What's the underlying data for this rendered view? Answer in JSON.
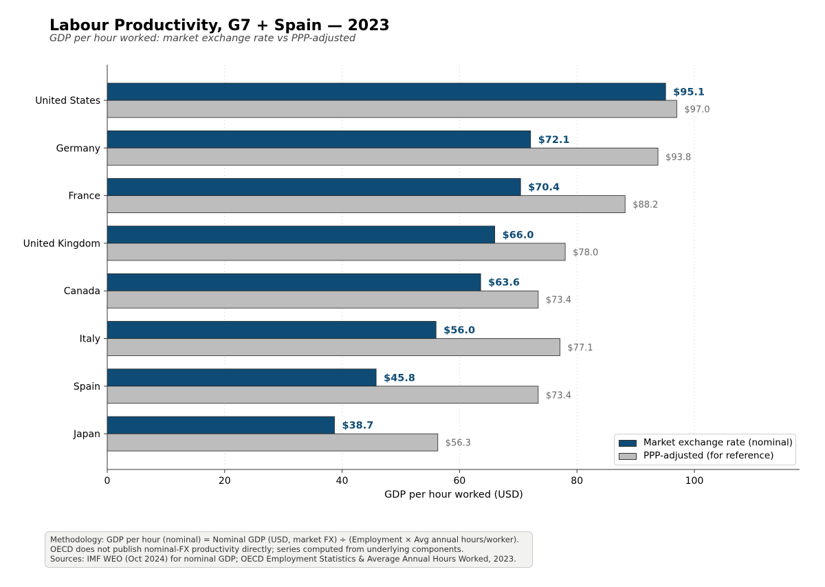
{
  "title": "Labour Productivity, G7 + Spain — 2023",
  "subtitle": "GDP per hour worked: market exchange rate vs PPP-adjusted",
  "chart_data": {
    "type": "bar",
    "orientation": "horizontal",
    "categories": [
      "United States",
      "Germany",
      "France",
      "United Kingdom",
      "Canada",
      "Italy",
      "Spain",
      "Japan"
    ],
    "series": [
      {
        "name": "Market exchange rate (nominal)",
        "values": [
          95.1,
          72.1,
          70.4,
          66.0,
          63.6,
          56.0,
          45.8,
          38.7
        ],
        "labels": [
          "$95.1",
          "$72.1",
          "$70.4",
          "$66.0",
          "$63.6",
          "$56.0",
          "$45.8",
          "$38.7"
        ],
        "color": "#0f4c75"
      },
      {
        "name": "PPP-adjusted (for reference)",
        "values": [
          97.0,
          93.8,
          88.2,
          78.0,
          73.4,
          77.1,
          73.4,
          56.3
        ],
        "labels": [
          "$97.0",
          "$93.8",
          "$88.2",
          "$78.0",
          "$73.4",
          "$77.1",
          "$73.4",
          "$56.3"
        ],
        "color": "#bdbdbd"
      }
    ],
    "xlabel": "GDP per hour worked (USD)",
    "xlim": [
      0,
      118
    ],
    "xticks": [
      "0",
      "20",
      "40",
      "60",
      "80",
      "100"
    ],
    "xtick_values": [
      0,
      20,
      40,
      60,
      80,
      100
    ],
    "grid": "vertical dotted",
    "legend": "bottom-right"
  },
  "legend": {
    "nominal": "Market exchange rate (nominal)",
    "ppp": "PPP-adjusted (for reference)"
  },
  "colors": {
    "nominal": "#0f4c75",
    "ppp": "#bdbdbd",
    "nominal_label": "#0f4c75",
    "ppp_label": "#666666"
  },
  "note": {
    "line1": "Methodology: GDP per hour (nominal) = Nominal GDP (USD, market FX) ÷ (Employment × Avg annual hours/worker).",
    "line2": "OECD does not publish nominal-FX productivity directly; series computed from underlying components.",
    "line3": "Sources: IMF WEO (Oct 2024) for nominal GDP; OECD Employment Statistics & Average Annual Hours Worked, 2023."
  }
}
